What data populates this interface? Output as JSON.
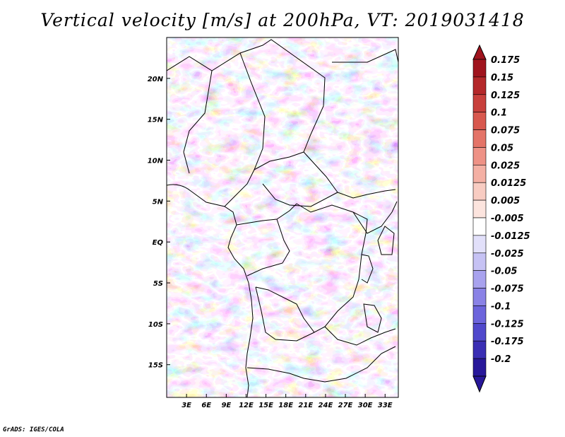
{
  "title": "Vertical velocity [m/s] at 200hPa, VT: 2019031418",
  "credit": "GrADS: IGES/COLA",
  "map": {
    "lon_range": [
      0,
      35
    ],
    "lat_range": [
      -19,
      25
    ],
    "lon_ticks": [
      {
        "value": 3,
        "label": "3E"
      },
      {
        "value": 6,
        "label": "6E"
      },
      {
        "value": 9,
        "label": "9E"
      },
      {
        "value": 12,
        "label": "12E"
      },
      {
        "value": 15,
        "label": "15E"
      },
      {
        "value": 18,
        "label": "18E"
      },
      {
        "value": 21,
        "label": "21E"
      },
      {
        "value": 24,
        "label": "24E"
      },
      {
        "value": 27,
        "label": "27E"
      },
      {
        "value": 30,
        "label": "30E"
      },
      {
        "value": 33,
        "label": "33E"
      }
    ],
    "lat_ticks": [
      {
        "value": 20,
        "label": "20N"
      },
      {
        "value": 15,
        "label": "15N"
      },
      {
        "value": 10,
        "label": "10N"
      },
      {
        "value": 5,
        "label": "5N"
      },
      {
        "value": 0,
        "label": "EQ"
      },
      {
        "value": -5,
        "label": "5S"
      },
      {
        "value": -10,
        "label": "10S"
      },
      {
        "value": -15,
        "label": "15S"
      }
    ],
    "colors": {
      "border": "#000000"
    }
  },
  "colorbar": {
    "levels": [
      {
        "label": "0.175",
        "color": "#a0141e"
      },
      {
        "label": "0.15",
        "color": "#b4282a"
      },
      {
        "label": "0.125",
        "color": "#c8403c"
      },
      {
        "label": "0.1",
        "color": "#d8584e"
      },
      {
        "label": "0.075",
        "color": "#e47468"
      },
      {
        "label": "0.05",
        "color": "#ee9286"
      },
      {
        "label": "0.025",
        "color": "#f4b0a4"
      },
      {
        "label": "0.0125",
        "color": "#f8ccc2"
      },
      {
        "label": "0.005",
        "color": "#fce4de"
      },
      {
        "label": "-0.005",
        "color": "#ffffff"
      },
      {
        "label": "-0.0125",
        "color": "#e2e0fa"
      },
      {
        "label": "-0.025",
        "color": "#c6c2f4"
      },
      {
        "label": "-0.05",
        "color": "#a8a2ee"
      },
      {
        "label": "-0.075",
        "color": "#8a82e6"
      },
      {
        "label": "-0.1",
        "color": "#6c64dc"
      },
      {
        "label": "-0.125",
        "color": "#5048cc"
      },
      {
        "label": "-0.175",
        "color": "#3a2eb4"
      },
      {
        "label": "-0.2",
        "color": "#28189a"
      }
    ],
    "top_arrow_color": "#a0141e",
    "bottom_arrow_color": "#28189a"
  }
}
